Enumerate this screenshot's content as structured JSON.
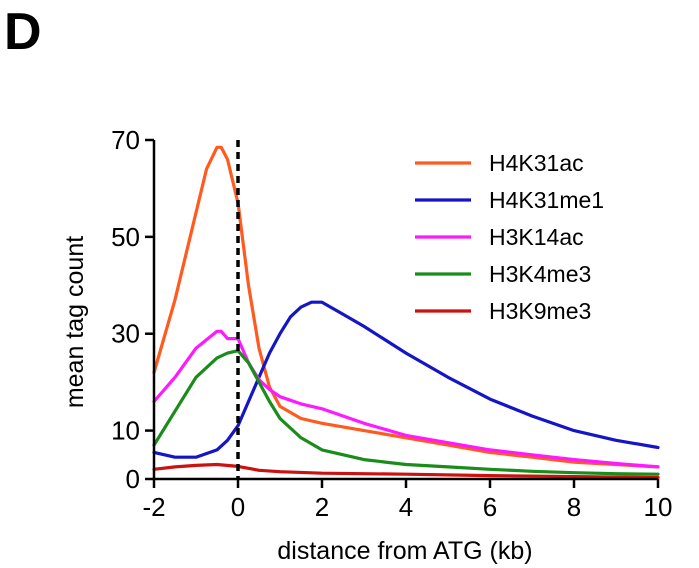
{
  "panel_label": "D",
  "chart_data": {
    "type": "line",
    "title": "",
    "xlabel": "distance from ATG (kb)",
    "ylabel": "mean tag count",
    "xlim": [
      -2,
      10
    ],
    "ylim": [
      0,
      70
    ],
    "x_ticks": [
      -2,
      0,
      2,
      4,
      6,
      8,
      10
    ],
    "x_tick_labels": [
      "-2",
      "0",
      "2",
      "4",
      "6",
      "8",
      "10"
    ],
    "y_ticks": [
      0,
      10,
      30,
      50,
      70
    ],
    "y_tick_labels": [
      "0",
      "10",
      "30",
      "50",
      "70"
    ],
    "grid": false,
    "legend_position": "top-right",
    "reference_line": {
      "x": 0,
      "style": "dashed"
    },
    "series": [
      {
        "name": "H4K31ac",
        "color": "#ff5a1f",
        "x": [
          -2,
          -1.5,
          -1,
          -0.75,
          -0.5,
          -0.4,
          -0.25,
          0,
          0.25,
          0.5,
          0.75,
          1,
          1.5,
          2,
          3,
          4,
          5,
          6,
          7,
          8,
          9,
          10
        ],
        "y": [
          22,
          37,
          55,
          64,
          68.5,
          68.5,
          66,
          57,
          40,
          27,
          19,
          15,
          12.5,
          11.5,
          10,
          8.5,
          7,
          5.5,
          4.5,
          3.5,
          3,
          2.5
        ]
      },
      {
        "name": "H4K31me1",
        "color": "#1515c8",
        "x": [
          -2,
          -1.5,
          -1,
          -0.5,
          -0.25,
          0,
          0.25,
          0.5,
          0.75,
          1,
          1.25,
          1.5,
          1.75,
          2,
          2.5,
          3,
          4,
          5,
          6,
          7,
          8,
          9,
          10
        ],
        "y": [
          5.5,
          4.5,
          4.5,
          6,
          8,
          11,
          16,
          21,
          26,
          30,
          33.5,
          35.5,
          36.5,
          36.5,
          34,
          31.5,
          26,
          21,
          16.5,
          13,
          10,
          8,
          6.5
        ]
      },
      {
        "name": "H3K14ac",
        "color": "#ff19ff",
        "x": [
          -2,
          -1.5,
          -1,
          -0.5,
          -0.4,
          -0.25,
          0,
          0.25,
          0.5,
          0.75,
          1,
          1.5,
          2,
          3,
          4,
          5,
          6,
          7,
          8,
          9,
          10
        ],
        "y": [
          16,
          21,
          27,
          30.5,
          30.5,
          29,
          29,
          24,
          20.5,
          18.5,
          17,
          15.5,
          14.5,
          11.5,
          9,
          7.5,
          6,
          5,
          4,
          3.2,
          2.5
        ]
      },
      {
        "name": "H3K4me3",
        "color": "#1a8c1a",
        "x": [
          -2,
          -1.5,
          -1,
          -0.5,
          -0.25,
          0,
          0.25,
          0.5,
          0.75,
          1,
          1.5,
          2,
          3,
          4,
          5,
          6,
          7,
          8,
          9,
          10
        ],
        "y": [
          7,
          14,
          21,
          25,
          26,
          26.5,
          24,
          20,
          16,
          12.5,
          8.5,
          6,
          4,
          3,
          2.5,
          2,
          1.6,
          1.3,
          1.1,
          1
        ]
      },
      {
        "name": "H3K9me3",
        "color": "#cc1111",
        "x": [
          -2,
          -1.5,
          -1,
          -0.5,
          0,
          0.5,
          1,
          2,
          4,
          6,
          8,
          10
        ],
        "y": [
          2,
          2.5,
          2.8,
          3,
          2.6,
          1.8,
          1.5,
          1.2,
          1,
          0.7,
          0.5,
          0.3
        ]
      }
    ]
  }
}
